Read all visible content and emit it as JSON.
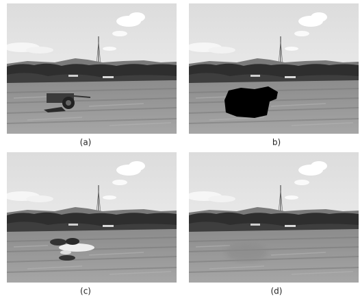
{
  "figure": {
    "panels": [
      {
        "label": "(a)"
      },
      {
        "label": "b)"
      },
      {
        "label": "(c)"
      },
      {
        "label": "(d)"
      }
    ]
  }
}
